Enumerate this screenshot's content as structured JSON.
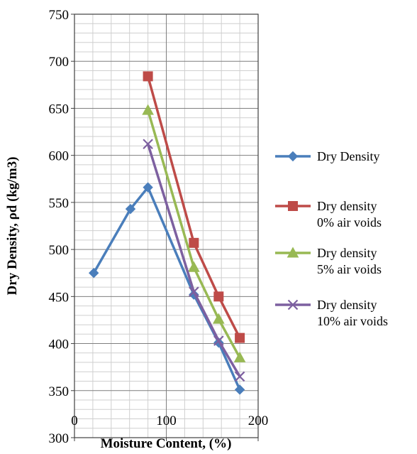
{
  "chart_data": {
    "type": "line",
    "title": "",
    "xlabel": "Moisture Content, (%)",
    "ylabel": "Dry Density, ρd (kg/m3)",
    "xlim": [
      0,
      200
    ],
    "ylim": [
      300,
      750
    ],
    "x_major_step": 100,
    "y_major_step": 50,
    "x_minor_step": 20,
    "y_minor_step": 10,
    "grid": true,
    "legend_position": "right",
    "x_ticks": [
      "0",
      "100",
      "200"
    ],
    "y_ticks": [
      "300",
      "350",
      "400",
      "450",
      "500",
      "550",
      "600",
      "650",
      "700",
      "750"
    ],
    "series": [
      {
        "name": "Dry Density",
        "legend_lines": [
          "Dry Density"
        ],
        "color": "#4A7EBB",
        "marker": "diamond",
        "x": [
          21,
          61,
          80,
          130,
          157,
          180
        ],
        "y": [
          475,
          543,
          566,
          452,
          401,
          351
        ]
      },
      {
        "name": "Dry density 0% air voids",
        "legend_lines": [
          "Dry density",
          "0% air voids"
        ],
        "color": "#BE4B48",
        "marker": "square",
        "x": [
          80,
          130,
          157,
          180
        ],
        "y": [
          684,
          507,
          450,
          406
        ]
      },
      {
        "name": "Dry density 5% air voids",
        "legend_lines": [
          "Dry density",
          "5% air voids"
        ],
        "color": "#98B954",
        "marker": "triangle",
        "x": [
          80,
          130,
          157,
          180
        ],
        "y": [
          648,
          481,
          426,
          385
        ]
      },
      {
        "name": "Dry density 10% air voids",
        "legend_lines": [
          "Dry density",
          "10% air voids"
        ],
        "color": "#7D60A0",
        "marker": "x",
        "x": [
          80,
          130,
          157,
          180
        ],
        "y": [
          612,
          455,
          403,
          365
        ]
      }
    ]
  }
}
